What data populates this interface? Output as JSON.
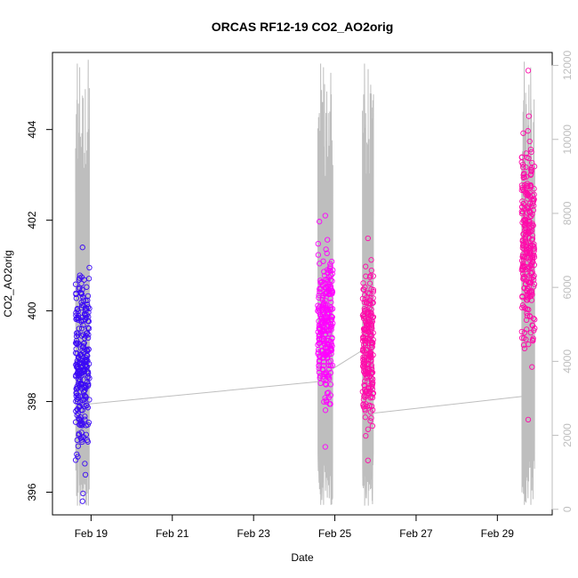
{
  "chart_data": {
    "type": "scatter",
    "title": "ORCAS RF12-19 CO2_AO2orig",
    "xlabel": "Date",
    "ylabel": "CO2_AO2orig",
    "x_tick_labels": [
      "Feb 19",
      "Feb 21",
      "Feb 23",
      "Feb 25",
      "Feb 27",
      "Feb 29"
    ],
    "x_tick_days": [
      19,
      21,
      23,
      25,
      27,
      29
    ],
    "xlim_days": [
      18.05,
      30.35
    ],
    "y_ticks": [
      396,
      398,
      400,
      402,
      404
    ],
    "ylim": [
      395.5,
      405.7
    ],
    "y2_ticks": [
      0,
      2000,
      4000,
      6000,
      8000,
      10000,
      12000
    ],
    "y2lim": [
      -150,
      12350
    ],
    "grid": false,
    "colors": {
      "axis": "#000000",
      "right_axis": "#bebebe",
      "altitude_line": "#bebebe"
    },
    "series": [
      {
        "color": "#3b0af5",
        "flights": [
          {
            "x_start": 18.62,
            "x_end": 18.96,
            "y_center": 398.8,
            "y_spread": 1.35,
            "y_min": 395.8,
            "y_max": 401.4,
            "points": 260
          }
        ]
      },
      {
        "color": "#ff00ff",
        "flights": [
          {
            "x_start": 24.58,
            "x_end": 24.95,
            "y_center": 399.6,
            "y_spread": 1.15,
            "y_min": 397.0,
            "y_max": 402.1,
            "points": 260
          }
        ]
      },
      {
        "color": "#ff0aaa",
        "flights": [
          {
            "x_start": 25.68,
            "x_end": 25.95,
            "y_center": 399.2,
            "y_spread": 1.1,
            "y_min": 396.7,
            "y_max": 401.6,
            "points": 230
          },
          {
            "x_start": 29.6,
            "x_end": 29.92,
            "y_center": 401.5,
            "y_spread": 1.5,
            "y_min": 397.6,
            "y_max": 405.3,
            "points": 280
          }
        ]
      }
    ],
    "altitude": {
      "segments": [
        {
          "x_start": 18.62,
          "x_end": 18.96,
          "spikes": [
            [
              18.66,
              12050
            ],
            [
              18.72,
              11950
            ],
            [
              18.93,
              12150
            ]
          ],
          "low": 100
        },
        {
          "x_start": 24.58,
          "x_end": 24.95,
          "spikes": [
            [
              24.65,
              12050
            ],
            [
              24.72,
              11950
            ],
            [
              24.9,
              11800
            ]
          ],
          "low": 120
        },
        {
          "x_start": 25.68,
          "x_end": 25.95,
          "spikes": [
            [
              25.73,
              12050
            ],
            [
              25.82,
              11900
            ]
          ],
          "low": 100
        },
        {
          "x_start": 29.6,
          "x_end": 29.92,
          "spikes": [
            [
              29.66,
              12100
            ],
            [
              29.82,
              11950
            ]
          ],
          "low": 120
        }
      ],
      "connectors": [
        [
          [
            18.96,
            2850
          ],
          [
            24.58,
            3450
          ]
        ],
        [
          [
            24.95,
            3800
          ],
          [
            25.68,
            4300
          ]
        ],
        [
          [
            25.95,
            2600
          ],
          [
            29.6,
            3050
          ]
        ]
      ]
    }
  }
}
